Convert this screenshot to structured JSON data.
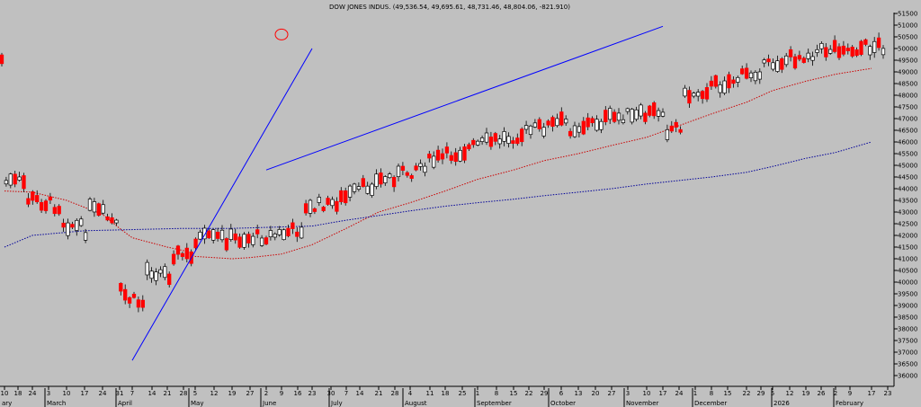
{
  "chart_data": {
    "type": "candlestick",
    "title": "DOW JONES INDUS. (49,536.54, 49,695.61, 48,731.46, 48,804.06, -821.910)",
    "y_ticks": [
      36000,
      36500,
      37000,
      37500,
      38000,
      38500,
      39000,
      39500,
      40000,
      40500,
      41000,
      41500,
      42000,
      42500,
      43000,
      43500,
      44000,
      44500,
      45000,
      45500,
      46000,
      46500,
      47000,
      47500,
      48000,
      48500,
      49000,
      49500,
      50000,
      50500,
      51000,
      51500
    ],
    "ylim": [
      35700,
      51700
    ],
    "grid": false,
    "day_ticks": [
      "10",
      "18",
      "24",
      "3",
      "10",
      "17",
      "24",
      "31",
      "7",
      "14",
      "21",
      "28",
      "5",
      "12",
      "19",
      "27",
      "2",
      "9",
      "16",
      "23",
      "30",
      "7",
      "14",
      "21",
      "28",
      "4",
      "11",
      "18",
      "25",
      "1",
      "8",
      "15",
      "22",
      "29",
      "6",
      "13",
      "20",
      "27",
      "3",
      "10",
      "17",
      "24",
      "1",
      "8",
      "15",
      "22",
      "29",
      "5",
      "12",
      "19",
      "26",
      "2",
      "9",
      "17",
      "23"
    ],
    "month_labels": [
      "ary",
      "March",
      "April",
      "May",
      "June",
      "July",
      "August",
      "September",
      "October",
      "November",
      "December",
      "2026",
      "February"
    ],
    "colors": {
      "background": "#c0c0c0",
      "up": "#ffffff",
      "down": "#ff0000",
      "outline": "#000000",
      "ma_short": "#cc0000",
      "ma_long": "#000099",
      "trendline": "#0000ff",
      "highlight": "#ff0000"
    },
    "moving_averages": [
      {
        "style": "red-dotted",
        "points": [
          [
            "10",
            43900
          ],
          [
            "24",
            43850
          ],
          [
            "10",
            43500
          ],
          [
            "24",
            42900
          ],
          [
            "31",
            42300
          ],
          [
            "7",
            41900
          ],
          [
            "21",
            41500
          ],
          [
            "28",
            41350
          ],
          [
            "5",
            41100
          ],
          [
            "19",
            41000
          ],
          [
            "27",
            41050
          ],
          [
            "9",
            41200
          ],
          [
            "23",
            41600
          ],
          [
            "7",
            42300
          ],
          [
            "21",
            43000
          ],
          [
            "4",
            43400
          ],
          [
            "18",
            43900
          ],
          [
            "1",
            44400
          ],
          [
            "15",
            44800
          ],
          [
            "29",
            45200
          ],
          [
            "13",
            45500
          ],
          [
            "27",
            45850
          ],
          [
            "10",
            46200
          ],
          [
            "24",
            46700
          ],
          [
            "8",
            47200
          ],
          [
            "22",
            47700
          ],
          [
            "5",
            48200
          ],
          [
            "19",
            48600
          ],
          [
            "2",
            48900
          ],
          [
            "17",
            49150
          ]
        ]
      },
      {
        "style": "navy-dotted",
        "points": [
          [
            "10",
            41500
          ],
          [
            "24",
            42000
          ],
          [
            "17",
            42200
          ],
          [
            "28",
            42300
          ],
          [
            "19",
            42300
          ],
          [
            "23",
            42400
          ],
          [
            "7",
            42650
          ],
          [
            "21",
            42850
          ],
          [
            "4",
            43050
          ],
          [
            "18",
            43250
          ],
          [
            "1",
            43400
          ],
          [
            "15",
            43550
          ],
          [
            "29",
            43700
          ],
          [
            "13",
            43850
          ],
          [
            "27",
            44000
          ],
          [
            "10",
            44200
          ],
          [
            "24",
            44350
          ],
          [
            "8",
            44500
          ],
          [
            "22",
            44700
          ],
          [
            "5",
            44950
          ],
          [
            "19",
            45300
          ],
          [
            "2",
            45550
          ],
          [
            "17",
            46000
          ]
        ]
      }
    ],
    "trendlines": [
      {
        "from": [
          "7",
          36650
        ],
        "to": [
          "23",
          50000
        ]
      },
      {
        "from": [
          "2",
          44800
        ],
        "to": [
          "17",
          50950
        ]
      }
    ],
    "highlight_circle": {
      "at": [
        "9",
        50600
      ]
    }
  }
}
